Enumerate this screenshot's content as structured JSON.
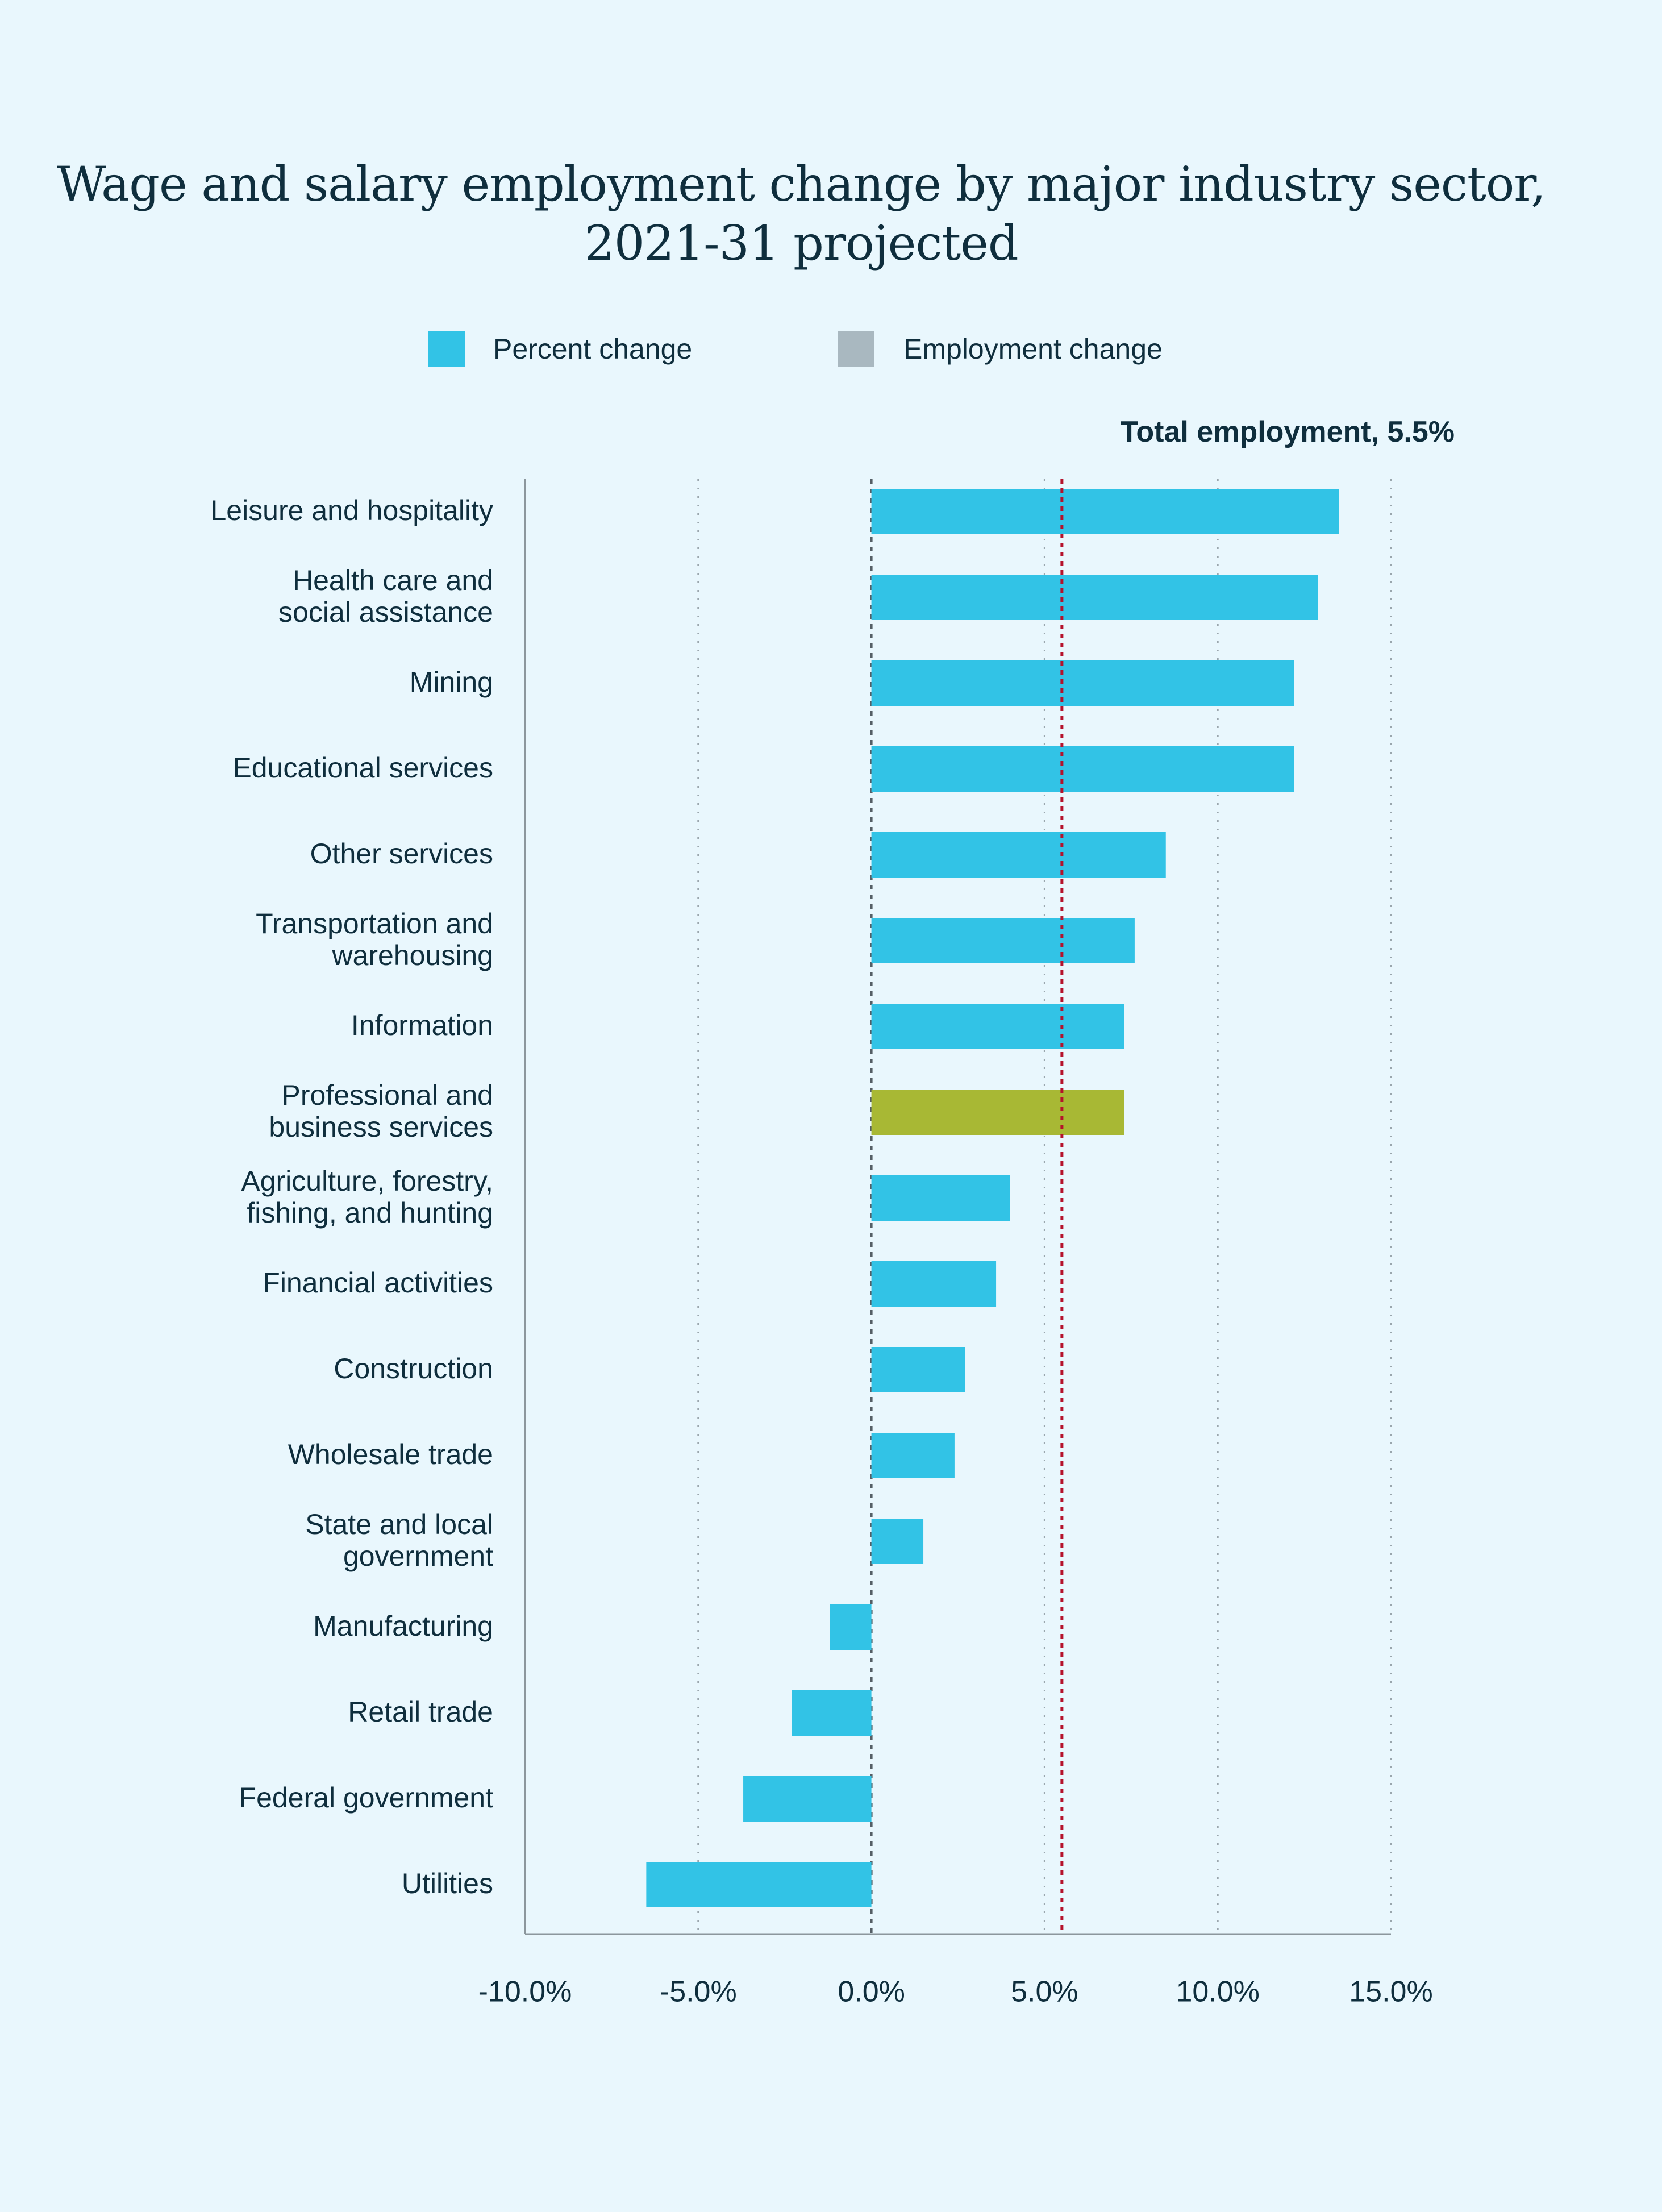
{
  "chart_data": {
    "type": "bar",
    "orientation": "horizontal",
    "title_lines": [
      "Wage and salary employment change by major industry sector,",
      "2021-31 projected"
    ],
    "legend": [
      {
        "label": "Percent change",
        "color": "#32c3e6"
      },
      {
        "label": "Employment change",
        "color": "#a9b8c0"
      }
    ],
    "reference_line": {
      "label": "Total employment, 5.5%",
      "value": 5.5,
      "color": "#b5122b"
    },
    "categories": [
      [
        "Leisure and hospitality"
      ],
      [
        "Health care and",
        "social assistance"
      ],
      [
        "Mining"
      ],
      [
        "Educational services"
      ],
      [
        "Other services"
      ],
      [
        "Transportation and",
        "warehousing"
      ],
      [
        "Information"
      ],
      [
        "Professional and",
        "business services"
      ],
      [
        "Agriculture, forestry,",
        "fishing, and hunting"
      ],
      [
        "Financial activities"
      ],
      [
        "Construction"
      ],
      [
        "Wholesale trade"
      ],
      [
        "State and local",
        "government"
      ],
      [
        "Manufacturing"
      ],
      [
        "Retail trade"
      ],
      [
        "Federal government"
      ],
      [
        "Utilities"
      ]
    ],
    "values": [
      13.5,
      12.9,
      12.2,
      12.2,
      8.5,
      7.6,
      7.3,
      7.3,
      4.0,
      3.6,
      2.7,
      2.4,
      1.5,
      -1.2,
      -2.3,
      -3.7,
      -6.5
    ],
    "highlight_index": 7,
    "bar_color": "#32c3e6",
    "highlight_color": "#a8b834",
    "xlim": [
      -10,
      15
    ],
    "xticks": [
      -10,
      -5,
      0,
      5,
      10,
      15
    ],
    "xtick_labels": [
      "-10.0%",
      "-5.0%",
      "0.0%",
      "5.0%",
      "10.0%",
      "15.0%"
    ],
    "grid": "vertical dotted"
  }
}
